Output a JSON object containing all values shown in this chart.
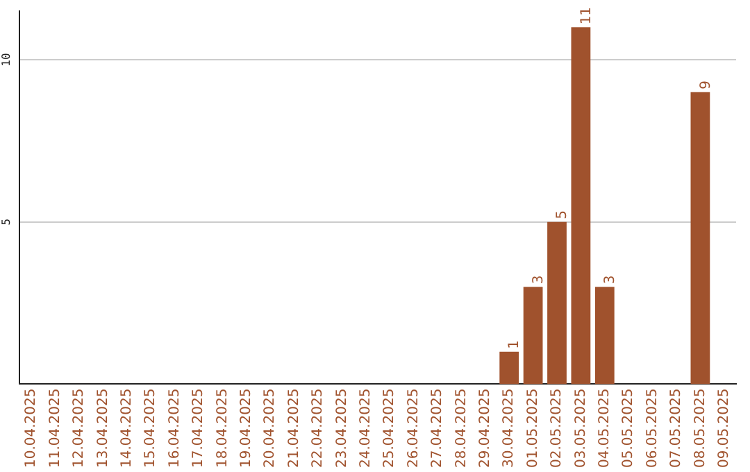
{
  "chart_data": {
    "type": "bar",
    "categories": [
      "10.04.2025",
      "11.04.2025",
      "12.04.2025",
      "13.04.2025",
      "14.04.2025",
      "15.04.2025",
      "16.04.2025",
      "17.04.2025",
      "18.04.2025",
      "19.04.2025",
      "20.04.2025",
      "21.04.2025",
      "22.04.2025",
      "23.04.2025",
      "24.04.2025",
      "25.04.2025",
      "26.04.2025",
      "27.04.2025",
      "28.04.2025",
      "29.04.2025",
      "30.04.2025",
      "01.05.2025",
      "02.05.2025",
      "03.05.2025",
      "04.05.2025",
      "05.05.2025",
      "06.05.2025",
      "07.05.2025",
      "08.05.2025",
      "09.05.2025"
    ],
    "values": [
      0,
      0,
      0,
      0,
      0,
      0,
      0,
      0,
      0,
      0,
      0,
      0,
      0,
      0,
      0,
      0,
      0,
      0,
      0,
      0,
      1,
      3,
      5,
      11,
      3,
      0,
      0,
      0,
      9,
      0
    ],
    "value_labels": [
      null,
      null,
      null,
      null,
      null,
      null,
      null,
      null,
      null,
      null,
      null,
      null,
      null,
      null,
      null,
      null,
      null,
      null,
      null,
      null,
      "1",
      "3",
      "5",
      "11",
      "3",
      null,
      null,
      null,
      "9",
      null
    ],
    "color": "#a0522d",
    "ylim": [
      0,
      11.5
    ],
    "yticks": [
      5,
      10
    ],
    "grid": "y",
    "legend": false
  }
}
